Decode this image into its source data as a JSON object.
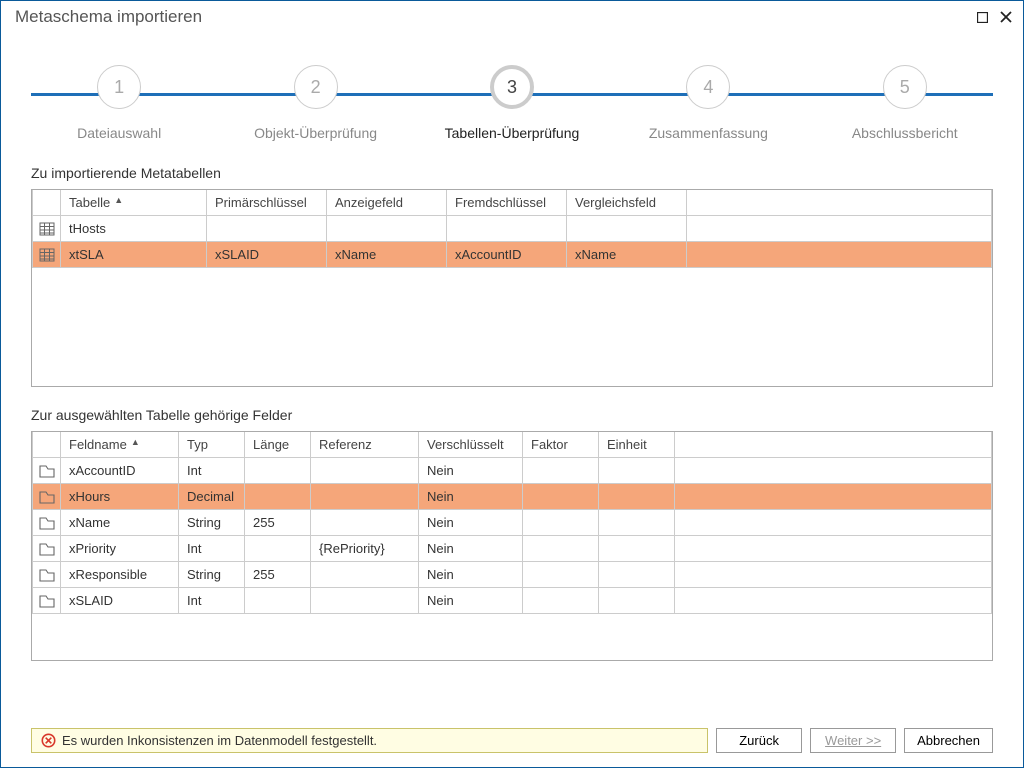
{
  "title": "Metaschema importieren",
  "steps": [
    {
      "num": "1",
      "label": "Dateiauswahl"
    },
    {
      "num": "2",
      "label": "Objekt-Überprüfung"
    },
    {
      "num": "3",
      "label": "Tabellen-Überprüfung"
    },
    {
      "num": "4",
      "label": "Zusammenfassung"
    },
    {
      "num": "5",
      "label": "Abschlussbericht"
    }
  ],
  "activeStep": 2,
  "section1": "Zu importierende Metatabellen",
  "section2": "Zur ausgewählten Tabelle gehörige Felder",
  "tablesHeader": {
    "c1": "Tabelle",
    "c2": "Primärschlüssel",
    "c3": "Anzeigefeld",
    "c4": "Fremdschlüssel",
    "c5": "Vergleichsfeld"
  },
  "tablesRows": [
    {
      "c1": "tHosts",
      "c2": "",
      "c3": "",
      "c4": "",
      "c5": "",
      "hl": false
    },
    {
      "c1": "xtSLA",
      "c2": "xSLAID",
      "c3": "xName",
      "c4": "xAccountID",
      "c5": "xName",
      "hl": true
    }
  ],
  "fieldsHeader": {
    "c1": "Feldname",
    "c2": "Typ",
    "c3": "Länge",
    "c4": "Referenz",
    "c5": "Verschlüsselt",
    "c6": "Faktor",
    "c7": "Einheit"
  },
  "fieldsRows": [
    {
      "c1": "xAccountID",
      "c2": "Int",
      "c3": "",
      "c4": "",
      "c5": "Nein",
      "c6": "",
      "c7": "",
      "hl": false
    },
    {
      "c1": "xHours",
      "c2": "Decimal",
      "c3": "",
      "c4": "",
      "c5": "Nein",
      "c6": "",
      "c7": "",
      "hl": true
    },
    {
      "c1": "xName",
      "c2": "String",
      "c3": "255",
      "c4": "",
      "c5": "Nein",
      "c6": "",
      "c7": "",
      "hl": false
    },
    {
      "c1": "xPriority",
      "c2": "Int",
      "c3": "",
      "c4": "{RePriority}",
      "c5": "Nein",
      "c6": "",
      "c7": "",
      "hl": false
    },
    {
      "c1": "xResponsible",
      "c2": "String",
      "c3": "255",
      "c4": "",
      "c5": "Nein",
      "c6": "",
      "c7": "",
      "hl": false
    },
    {
      "c1": "xSLAID",
      "c2": "Int",
      "c3": "",
      "c4": "",
      "c5": "Nein",
      "c6": "",
      "c7": "",
      "hl": false
    }
  ],
  "colWidths": {
    "tables": [
      "28px",
      "146px",
      "120px",
      "120px",
      "120px",
      "120px",
      "auto"
    ],
    "fields": [
      "28px",
      "118px",
      "66px",
      "66px",
      "108px",
      "104px",
      "76px",
      "76px",
      "auto"
    ]
  },
  "status": "Es wurden Inkonsistenzen im Datenmodell festgestellt.",
  "buttons": {
    "back": "Zurück",
    "next": "Weiter >>",
    "cancel": "Abbrechen"
  },
  "colors": {
    "accent": "#1e6fb8",
    "highlight": "#f5a67a",
    "warnBg": "#fffde3",
    "warnBorder": "#c9c36a",
    "error": "#d8362a"
  }
}
